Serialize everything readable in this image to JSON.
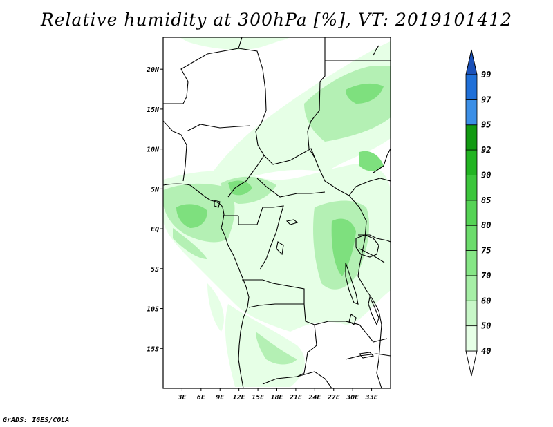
{
  "title": "Relative humidity at 300hPa [%], VT: 2019101412",
  "footer": "GrADS: IGES/COLA",
  "map": {
    "lon_range": [
      0,
      36
    ],
    "lat_range": [
      -20,
      24
    ],
    "lon_ticks": [
      {
        "value": 3,
        "label": "3E"
      },
      {
        "value": 6,
        "label": "6E"
      },
      {
        "value": 9,
        "label": "9E"
      },
      {
        "value": 12,
        "label": "12E"
      },
      {
        "value": 15,
        "label": "15E"
      },
      {
        "value": 18,
        "label": "18E"
      },
      {
        "value": 21,
        "label": "21E"
      },
      {
        "value": 24,
        "label": "24E"
      },
      {
        "value": 27,
        "label": "27E"
      },
      {
        "value": 30,
        "label": "30E"
      },
      {
        "value": 33,
        "label": "33E"
      }
    ],
    "lat_ticks": [
      {
        "value": 20,
        "label": "20N"
      },
      {
        "value": 15,
        "label": "15N"
      },
      {
        "value": 10,
        "label": "10N"
      },
      {
        "value": 5,
        "label": "5N"
      },
      {
        "value": 0,
        "label": "EQ"
      },
      {
        "value": -5,
        "label": "5S"
      },
      {
        "value": -10,
        "label": "10S"
      },
      {
        "value": -15,
        "label": "15S"
      }
    ]
  },
  "colorbar": {
    "levels": [
      "40",
      "50",
      "60",
      "70",
      "75",
      "80",
      "85",
      "90",
      "92",
      "95",
      "97",
      "99"
    ],
    "colors": [
      "#e6ffe6",
      "#c8f7c8",
      "#a6efa6",
      "#86e686",
      "#6cdc6c",
      "#55d355",
      "#3cc63c",
      "#22b422",
      "#129a12",
      "#3c8fe6",
      "#2070d8",
      "#1a55c0"
    ],
    "bottom_triangle": "#ffffff",
    "top_triangle": "#1a50b8"
  },
  "colors": {
    "humidity_light": "#e6ffe6",
    "humidity_mid": "#b4f0b4",
    "humidity_high": "#7ee07e",
    "coastline": "#000000"
  }
}
